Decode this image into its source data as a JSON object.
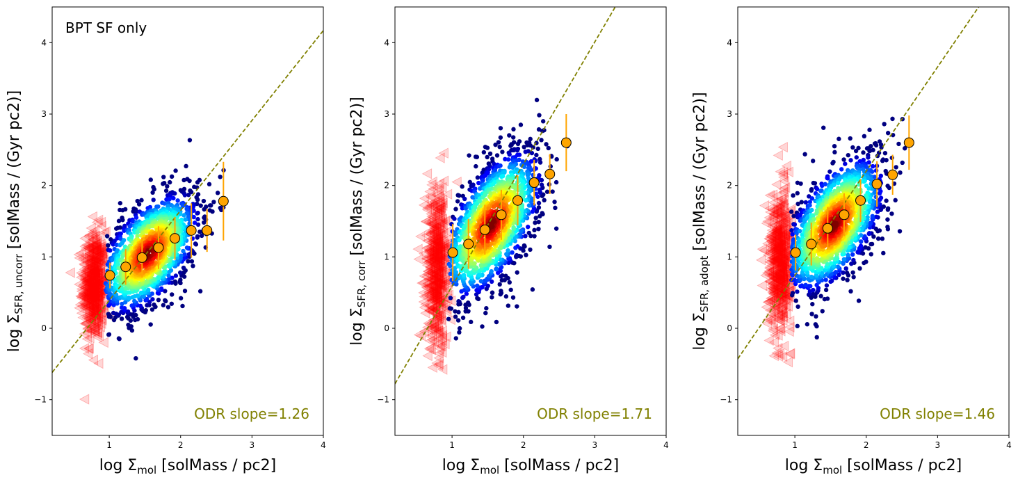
{
  "figure": {
    "fit_color": "#808000",
    "binned_color": "#ffa500",
    "upper_limit_color": "#ff0000"
  },
  "chart_data": [
    {
      "type": "scatter",
      "title": "BPT SF only",
      "xlabel": {
        "prefix": "log Σ",
        "sub": "mol",
        "suffix": " [solMass / pc2]"
      },
      "ylabel": {
        "prefix": "log Σ",
        "sub": "SFR, uncorr",
        "suffix": " [solMass / (Gyr pc2)]"
      },
      "xlim": [
        0.2,
        4.0
      ],
      "ylim": [
        -1.5,
        4.5
      ],
      "xticks": [
        1,
        2,
        3,
        4
      ],
      "yticks": [
        -1,
        0,
        1,
        2,
        3,
        4
      ],
      "fit": {
        "slope": 1.26,
        "intercept": -0.87
      },
      "slope_text": "ODR slope=1.26",
      "cloud": {
        "x_mean": 1.55,
        "y_mean": 1.05,
        "x_sd": 0.35,
        "y_sd": 0.42,
        "rho": 0.55,
        "x_min": 0.95,
        "x_max": 2.65
      },
      "limits": {
        "x_mean": 0.78,
        "y_mean": 0.6,
        "x_sd": 0.08,
        "y_sd": 0.38
      },
      "binned": {
        "x": [
          1.01,
          1.23,
          1.46,
          1.69,
          1.92,
          2.15,
          2.37,
          2.6
        ],
        "y": [
          0.74,
          0.86,
          0.99,
          1.13,
          1.26,
          1.37,
          1.37,
          1.78
        ],
        "err": [
          0.18,
          0.25,
          0.28,
          0.3,
          0.3,
          0.38,
          0.3,
          0.55
        ]
      }
    },
    {
      "type": "scatter",
      "title": "",
      "xlabel": {
        "prefix": "log Σ",
        "sub": "mol",
        "suffix": " [solMass / pc2]"
      },
      "ylabel": {
        "prefix": "log Σ",
        "sub": "SFR, corr",
        "suffix": " [solMass / (Gyr pc2)]"
      },
      "xlim": [
        0.2,
        4.0
      ],
      "ylim": [
        -1.5,
        4.5
      ],
      "xticks": [
        1,
        2,
        3,
        4
      ],
      "yticks": [
        -1,
        0,
        1,
        2,
        3,
        4
      ],
      "fit": {
        "slope": 1.71,
        "intercept": -1.12
      },
      "slope_text": "ODR slope=1.71",
      "cloud": {
        "x_mean": 1.55,
        "y_mean": 1.45,
        "x_sd": 0.35,
        "y_sd": 0.52,
        "rho": 0.6,
        "x_min": 0.95,
        "x_max": 2.65
      },
      "limits": {
        "x_mean": 0.78,
        "y_mean": 0.85,
        "x_sd": 0.08,
        "y_sd": 0.55
      },
      "binned": {
        "x": [
          1.01,
          1.23,
          1.46,
          1.69,
          1.92,
          2.15,
          2.37,
          2.6
        ],
        "y": [
          1.06,
          1.18,
          1.38,
          1.59,
          1.79,
          2.04,
          2.16,
          2.6
        ],
        "err": [
          0.4,
          0.35,
          0.35,
          0.35,
          0.35,
          0.32,
          0.28,
          0.4
        ]
      }
    },
    {
      "type": "scatter",
      "title": "",
      "xlabel": {
        "prefix": "log Σ",
        "sub": "mol",
        "suffix": " [solMass / pc2]"
      },
      "ylabel": {
        "prefix": "log Σ",
        "sub": "SFR, adopt",
        "suffix": " [solMass / (Gyr pc2)]"
      },
      "xlim": [
        0.2,
        4.0
      ],
      "ylim": [
        -1.5,
        4.5
      ],
      "xticks": [
        1,
        2,
        3,
        4
      ],
      "yticks": [
        -1,
        0,
        1,
        2,
        3,
        4
      ],
      "fit": {
        "slope": 1.46,
        "intercept": -0.72
      },
      "slope_text": "ODR slope=1.46",
      "cloud": {
        "x_mean": 1.55,
        "y_mean": 1.45,
        "x_sd": 0.35,
        "y_sd": 0.48,
        "rho": 0.58,
        "x_min": 0.95,
        "x_max": 2.65
      },
      "limits": {
        "x_mean": 0.78,
        "y_mean": 0.95,
        "x_sd": 0.08,
        "y_sd": 0.48
      },
      "binned": {
        "x": [
          1.01,
          1.23,
          1.46,
          1.69,
          1.92,
          2.15,
          2.37,
          2.6
        ],
        "y": [
          1.06,
          1.18,
          1.4,
          1.59,
          1.79,
          2.02,
          2.15,
          2.6
        ],
        "err": [
          0.25,
          0.3,
          0.3,
          0.3,
          0.3,
          0.32,
          0.28,
          0.38
        ]
      }
    }
  ]
}
